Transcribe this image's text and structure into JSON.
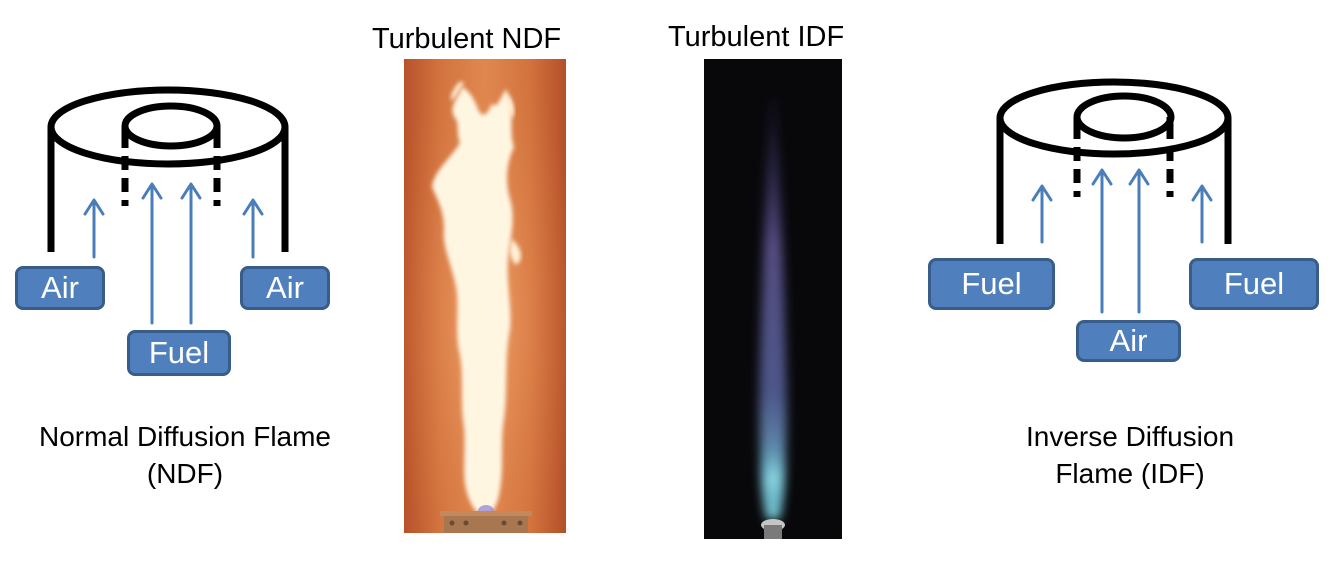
{
  "titles": {
    "ndf_photo": "Turbulent NDF",
    "idf_photo": "Turbulent IDF"
  },
  "ndf_diagram": {
    "labels": {
      "air_left": "Air",
      "air_right": "Air",
      "fuel": "Fuel"
    },
    "caption_line1": "Normal Diffusion Flame",
    "caption_line2": "(NDF)"
  },
  "idf_diagram": {
    "labels": {
      "fuel_left": "Fuel",
      "fuel_right": "Fuel",
      "air": "Air"
    },
    "caption_line1": "Inverse Diffusion",
    "caption_line2": "Flame (IDF)"
  },
  "colors": {
    "label_box_fill": "#4f80bd",
    "label_box_border": "#385d8a",
    "arrow": "#4a7ebb",
    "burner_outline": "#000000",
    "ndf_flame_background": "#d8793f",
    "ndf_flame_core": "#fff4dc",
    "idf_flame_background": "#08080b",
    "idf_flame_base": "#7fd6e0"
  }
}
